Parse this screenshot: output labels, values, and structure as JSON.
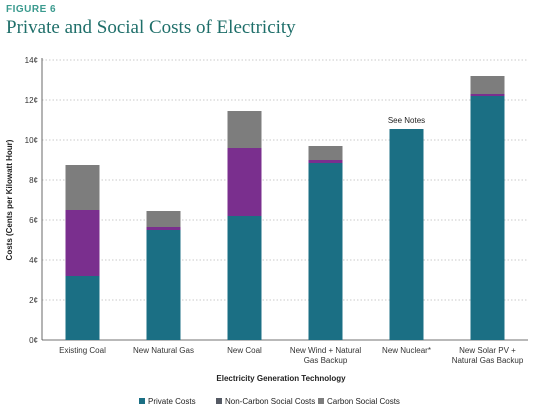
{
  "figure_label": "FIGURE 6",
  "title": "Private and Social Costs of Electricity",
  "colors": {
    "private": "#1b6f84",
    "noncarbon": "#5a5f6a",
    "carbon_social_1": "#7d7d7d",
    "purple": "#7a2f8e",
    "accent": "#3a9a8e",
    "title": "#1f6f6a"
  },
  "chart_data": {
    "type": "bar",
    "stacked": true,
    "xlabel": "Electricity Generation Technology",
    "ylabel": "Costs (Cents per Kilowatt Hour)",
    "ylim": [
      0,
      14
    ],
    "yticks": [
      "0¢",
      "2¢",
      "4¢",
      "6¢",
      "8¢",
      "10¢",
      "12¢",
      "14¢"
    ],
    "grid": true,
    "categories": [
      [
        "Existing Coal"
      ],
      [
        "New Natural Gas"
      ],
      [
        "New Coal"
      ],
      [
        "New Wind + Natural",
        "Gas Backup"
      ],
      [
        "New Nuclear*"
      ],
      [
        "New Solar PV +",
        "Natural Gas Backup"
      ]
    ],
    "annotation": {
      "category_index": 4,
      "text": "See Notes"
    },
    "segments": [
      {
        "name": "Private Costs",
        "color": "#1b6f84",
        "values": [
          3.2,
          5.5,
          6.2,
          8.85,
          10.55,
          12.2
        ]
      },
      {
        "name": "Non-Carbon Social Costs",
        "color": "#7a2f8e",
        "values": [
          3.3,
          0.15,
          3.4,
          0.15,
          0,
          0.1
        ]
      },
      {
        "name": "Carbon Social Costs",
        "color": "#7d7d7d",
        "values": [
          2.25,
          0.8,
          1.85,
          0.7,
          0,
          0.9
        ]
      }
    ],
    "legend": {
      "position": "bottom",
      "items": [
        {
          "label": "Private Costs",
          "color": "#1b6f84"
        },
        {
          "label": "Non-Carbon Social Costs",
          "color": "#555a64"
        },
        {
          "label": "Carbon Social Costs",
          "color": "#7d7d7d"
        }
      ]
    }
  }
}
